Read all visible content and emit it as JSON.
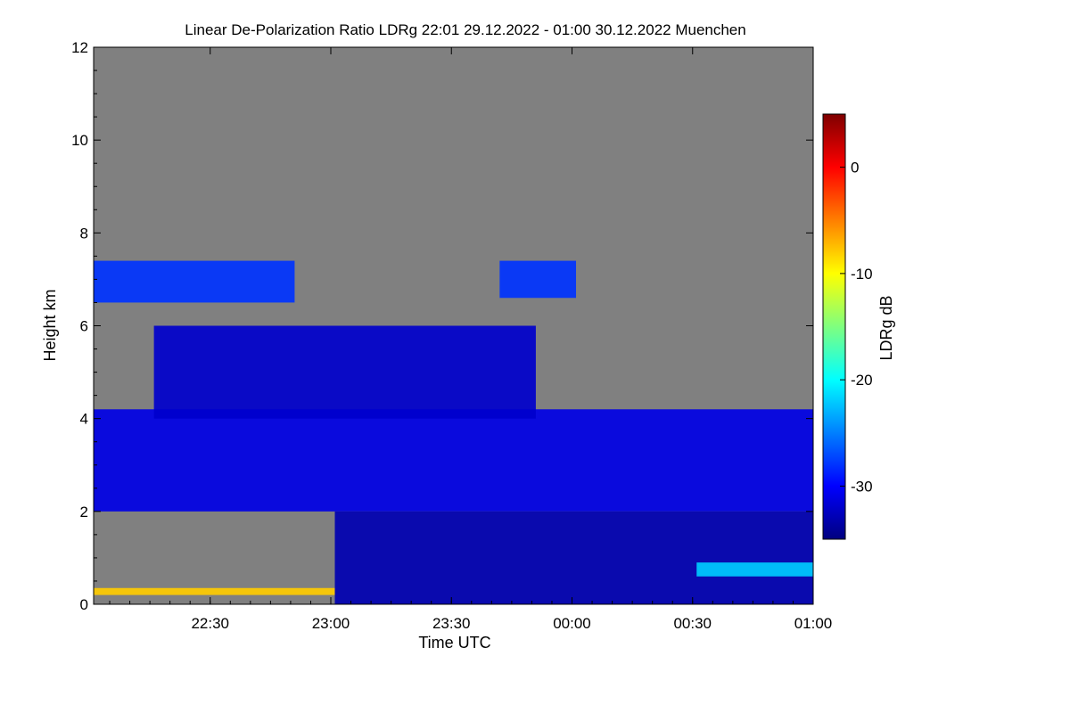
{
  "chart_data": {
    "type": "heatmap",
    "title": "Linear De-Polarization Ratio LDRg   22:01 29.12.2022 - 01:00 30.12.2022 Muenchen",
    "xlabel": "Time UTC",
    "ylabel": "Height km",
    "x_range": [
      "22:01",
      "01:00"
    ],
    "x_ticks": [
      {
        "label": "22:30",
        "minutes": 29
      },
      {
        "label": "23:00",
        "minutes": 59
      },
      {
        "label": "23:30",
        "minutes": 89
      },
      {
        "label": "00:00",
        "minutes": 119
      },
      {
        "label": "00:30",
        "minutes": 149
      },
      {
        "label": "01:00",
        "minutes": 179
      }
    ],
    "ylim": [
      0,
      12
    ],
    "y_ticks": [
      0,
      2,
      4,
      6,
      8,
      10,
      12
    ],
    "background_color": "#808080",
    "colorbar": {
      "label": "LDRg dB",
      "range": [
        -35,
        5
      ],
      "ticks": [
        0,
        -10,
        -20,
        -30
      ],
      "colors": [
        "#00007f",
        "#0000ff",
        "#007fff",
        "#00ffff",
        "#7fff7f",
        "#ffff00",
        "#ff7f00",
        "#ff0000",
        "#7f0000"
      ]
    },
    "features": [
      {
        "desc": "low cloud layer",
        "time_start_min": 0,
        "time_end_min": 179,
        "height_bottom_km": 2.0,
        "height_top_km": 4.2,
        "ldr_db": -31
      },
      {
        "desc": "fall streaks",
        "time_start_min": 15,
        "time_end_min": 110,
        "height_bottom_km": 4.0,
        "height_top_km": 6.0,
        "ldr_db": -32
      },
      {
        "desc": "upper cloud",
        "time_start_min": 0,
        "time_end_min": 50,
        "height_bottom_km": 6.5,
        "height_top_km": 7.4,
        "ldr_db": -28
      },
      {
        "desc": "upper cloud",
        "time_start_min": 101,
        "time_end_min": 120,
        "height_bottom_km": 6.6,
        "height_top_km": 7.4,
        "ldr_db": -28
      },
      {
        "desc": "precipitation below cloud",
        "time_start_min": 60,
        "time_end_min": 179,
        "height_bottom_km": 0.0,
        "height_top_km": 2.0,
        "ldr_db": -33
      },
      {
        "desc": "enhanced layer",
        "time_start_min": 150,
        "time_end_min": 179,
        "height_bottom_km": 0.6,
        "height_top_km": 0.9,
        "ldr_db": -22
      },
      {
        "desc": "surface layer",
        "time_start_min": 0,
        "time_end_min": 60,
        "height_bottom_km": 0.2,
        "height_top_km": 0.35,
        "ldr_db": -8
      }
    ]
  }
}
